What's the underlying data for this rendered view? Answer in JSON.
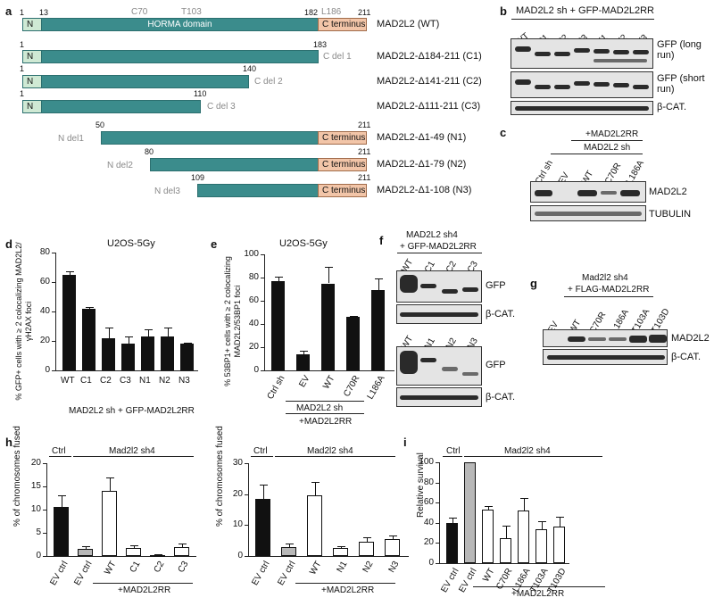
{
  "panel_letters": [
    "a",
    "b",
    "c",
    "d",
    "e",
    "f",
    "g",
    "h",
    "i"
  ],
  "a": {
    "mutation_labels": [
      "C70",
      "T103",
      "L186"
    ],
    "domain_label": "HORMA domain",
    "n_label": "N",
    "c_label": "C terminus",
    "constructs": [
      {
        "name": "MAD2L2 (WT)",
        "start": "1",
        "mid": "13",
        "end": "182",
        "end2": "211"
      },
      {
        "name": "MAD2L2-Δ184-211 (C1)",
        "start": "1",
        "end": "183",
        "del": "C del 1"
      },
      {
        "name": "MAD2L2-Δ141-211 (C2)",
        "start": "1",
        "end": "140",
        "del": "C del 2"
      },
      {
        "name": "MAD2L2-Δ111-211 (C3)",
        "start": "1",
        "end": "110",
        "del": "C del 3"
      },
      {
        "name": "MAD2L2-Δ1-49 (N1)",
        "start": "50",
        "end": "211",
        "del": "N del1"
      },
      {
        "name": "MAD2L2-Δ1-79 (N2)",
        "start": "80",
        "end": "211",
        "del": "N del2"
      },
      {
        "name": "MAD2L2-Δ1-108 (N3)",
        "start": "109",
        "end": "211",
        "del": "N del3"
      }
    ]
  },
  "b": {
    "header": "MAD2L2 sh + GFP-MAD2L2RR",
    "lanes": [
      "WT",
      "C1",
      "C2",
      "C3",
      "N1",
      "N2",
      "N3"
    ],
    "blot_labels": [
      "GFP (long run)",
      "GFP (short run)",
      "β-CAT."
    ]
  },
  "c": {
    "header_top": "+MAD2L2RR",
    "header_sub": "MAD2L2 sh",
    "lanes": [
      "Ctrl sh",
      "EV",
      "WT",
      "C70R",
      "L186A"
    ],
    "blot_labels": [
      "MAD2L2",
      "TUBULIN"
    ]
  },
  "f": {
    "header1": "MAD2L2 sh4",
    "header2": "+ GFP-MAD2L2RR",
    "lanes_top": [
      "WT",
      "C1",
      "C2",
      "C3"
    ],
    "lanes_bottom": [
      "WT",
      "N1",
      "N2",
      "N3"
    ],
    "blot_labels": [
      "GFP",
      "β-CAT.",
      "GFP",
      "β-CAT."
    ]
  },
  "g": {
    "header1": "Mad2l2 sh4",
    "header2": "+ FLAG-MAD2L2RR",
    "lanes": [
      "EV",
      "WT",
      "C70R",
      "L186A",
      "T103A",
      "T103D"
    ],
    "blot_labels": [
      "MAD2L2",
      "β-CAT."
    ]
  },
  "chart_data": [
    {
      "id": "d",
      "type": "bar",
      "title": "U2OS-5Gy",
      "ylabel": "% GFP+ cells with ≥ 2 colocalizing MAD2L2/γH2AX foci",
      "xlabel": "MAD2L2 sh + GFP-MAD2L2RR",
      "categories": [
        "WT",
        "C1",
        "C2",
        "C3",
        "N1",
        "N2",
        "N3"
      ],
      "values": [
        65,
        42,
        22,
        18,
        23,
        23,
        18
      ],
      "errors": [
        2,
        1,
        7,
        5,
        5,
        6,
        1
      ],
      "ylim": [
        0,
        80
      ],
      "yticks": [
        "0",
        "20",
        "40",
        "60",
        "80"
      ]
    },
    {
      "id": "e",
      "type": "bar",
      "title": "U2OS-5Gy",
      "ylabel": "% 53BP1+ cells with ≥ 2 colocalizing MAD2L2/53BP1 foci",
      "categories": [
        "Ctrl sh",
        "EV",
        "WT",
        "C70R",
        "L186A"
      ],
      "values": [
        77,
        14,
        75,
        46,
        69
      ],
      "errors": [
        4,
        3,
        14,
        1,
        10
      ],
      "ylim": [
        0,
        100
      ],
      "yticks": [
        "0",
        "20",
        "40",
        "60",
        "80",
        "100"
      ],
      "group_label": "MAD2L2 sh",
      "group_label2": "+MAD2L2RR"
    },
    {
      "id": "h1",
      "type": "bar",
      "ylabel": "% of chromosomes fused",
      "categories": [
        "EV ctrl",
        "EV ctrl",
        "WT",
        "C1",
        "C2",
        "C3"
      ],
      "values": [
        10.5,
        1.5,
        14,
        1.8,
        0.2,
        2
      ],
      "errors": [
        2.5,
        0.6,
        3,
        0.6,
        0.2,
        0.7
      ],
      "fills": [
        "#111111",
        "#b8b8b8",
        "#ffffff",
        "#ffffff",
        "#ffffff",
        "#ffffff"
      ],
      "ylim": [
        0,
        20
      ],
      "yticks": [
        "0",
        "5",
        "10",
        "15",
        "20"
      ],
      "ctrl_label": "Ctrl",
      "group_label": "Mad2l2 sh4",
      "group_label2": "+MAD2L2RR"
    },
    {
      "id": "h2",
      "type": "bar",
      "ylabel": "% of chromosomes fused",
      "categories": [
        "EV ctrl",
        "EV ctrl",
        "WT",
        "N1",
        "N2",
        "N3"
      ],
      "values": [
        18.5,
        3,
        19.5,
        2.5,
        4.5,
        5.5
      ],
      "errors": [
        4.5,
        1,
        4.5,
        0.6,
        1.5,
        1.2
      ],
      "fills": [
        "#111111",
        "#b8b8b8",
        "#ffffff",
        "#ffffff",
        "#ffffff",
        "#ffffff"
      ],
      "ylim": [
        0,
        30
      ],
      "yticks": [
        "0",
        "10",
        "20",
        "30"
      ],
      "ctrl_label": "Ctrl",
      "group_label": "Mad2l2 sh4",
      "group_label2": "+MAD2L2RR"
    },
    {
      "id": "i",
      "type": "bar",
      "ylabel": "Relative survival",
      "categories": [
        "EV ctrl",
        "EV ctrl",
        "WT",
        "C70R",
        "L186A",
        "T103A",
        "T103D"
      ],
      "values": [
        40,
        100,
        53,
        25,
        52,
        34,
        36
      ],
      "errors": [
        5,
        0,
        4,
        12,
        13,
        8,
        10
      ],
      "fills": [
        "#111111",
        "#b8b8b8",
        "#ffffff",
        "#ffffff",
        "#ffffff",
        "#ffffff",
        "#ffffff"
      ],
      "ylim": [
        0,
        100
      ],
      "yticks": [
        "0",
        "20",
        "40",
        "60",
        "80",
        "100"
      ],
      "ctrl_label": "Ctrl",
      "group_label": "Mad2l2 sh4",
      "group_label2": "+MAD2L2RR"
    }
  ]
}
